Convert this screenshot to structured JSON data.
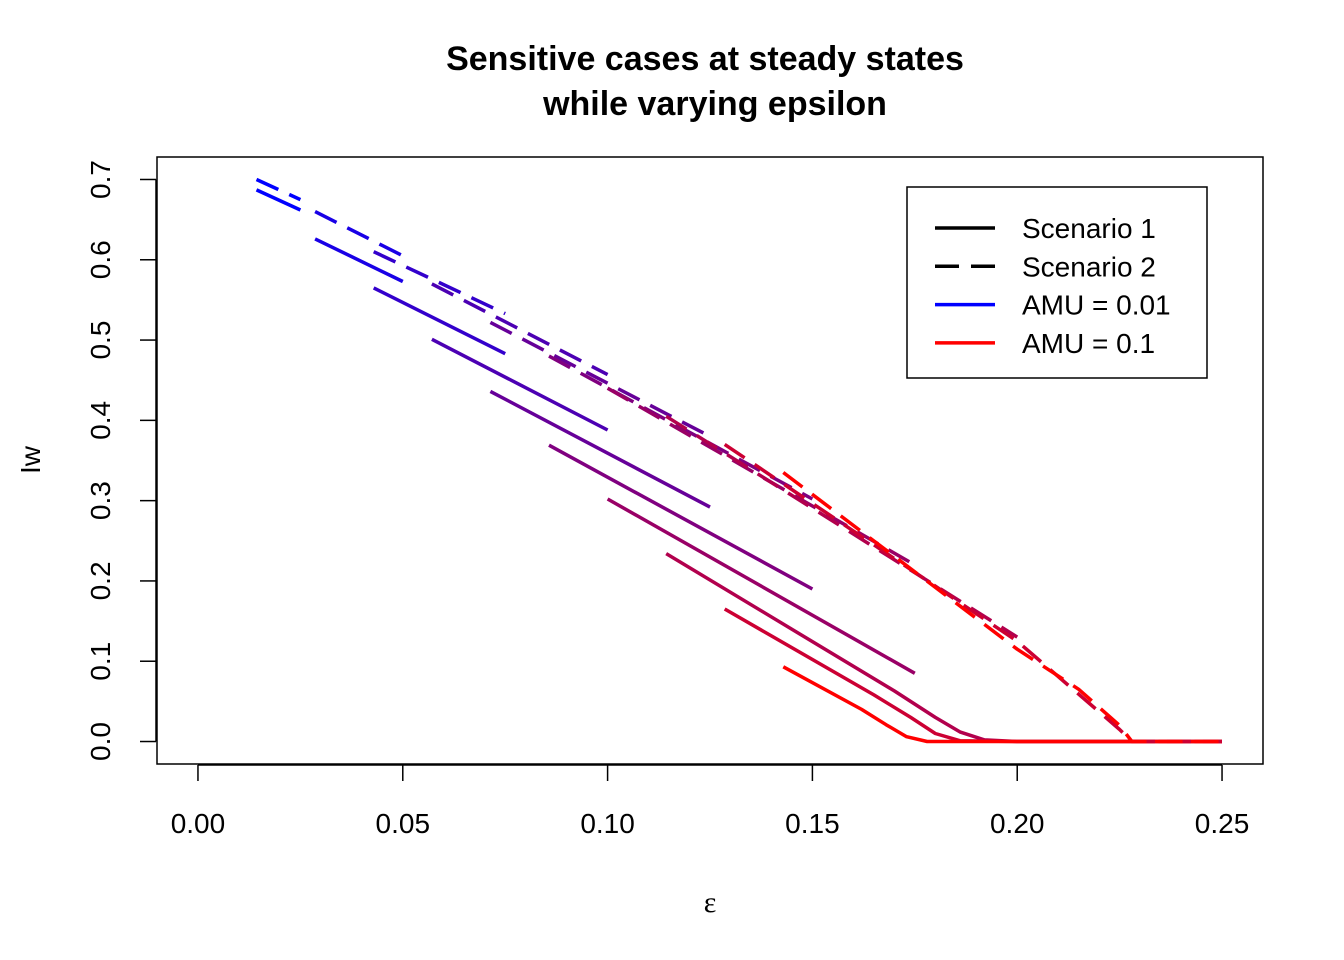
{
  "chart_data": {
    "type": "line",
    "title": [
      "Sensitive cases at steady states",
      "while varying epsilon"
    ],
    "xlabel": "ε",
    "ylabel": "Iw",
    "xlim": [
      -0.01,
      0.26
    ],
    "ylim": [
      -0.028,
      0.728
    ],
    "xticks": [
      0.0,
      0.05,
      0.1,
      0.15,
      0.2,
      0.25
    ],
    "xtick_labels": [
      "0.00",
      "0.05",
      "0.10",
      "0.15",
      "0.20",
      "0.25"
    ],
    "yticks": [
      0.0,
      0.1,
      0.2,
      0.3,
      0.4,
      0.5,
      0.6,
      0.7
    ],
    "ytick_labels": [
      "0.0",
      "0.1",
      "0.2",
      "0.3",
      "0.4",
      "0.5",
      "0.6",
      "0.7"
    ],
    "legend": {
      "position": "top-right",
      "entries": [
        {
          "label": "Scenario 1",
          "color": "#000000",
          "dash": "solid"
        },
        {
          "label": "Scenario 2",
          "color": "#000000",
          "dash": "dashed"
        },
        {
          "label": "AMU = 0.01",
          "color": "#0000ff",
          "dash": "solid"
        },
        {
          "label": "AMU = 0.1",
          "color": "#ff0000",
          "dash": "solid"
        }
      ]
    },
    "series": [
      {
        "scenario": 1,
        "color": "#0000ff",
        "dash": "solid",
        "points": [
          [
            0.0143,
            0.687
          ],
          [
            0.025,
            0.662
          ]
        ]
      },
      {
        "scenario": 1,
        "color": "#1900e6",
        "dash": "solid",
        "points": [
          [
            0.0286,
            0.626
          ],
          [
            0.05,
            0.573
          ]
        ]
      },
      {
        "scenario": 1,
        "color": "#3300cc",
        "dash": "solid",
        "points": [
          [
            0.0429,
            0.565
          ],
          [
            0.075,
            0.483
          ]
        ]
      },
      {
        "scenario": 1,
        "color": "#4c00b3",
        "dash": "solid",
        "points": [
          [
            0.0571,
            0.501
          ],
          [
            0.1,
            0.388
          ]
        ]
      },
      {
        "scenario": 1,
        "color": "#660099",
        "dash": "solid",
        "points": [
          [
            0.0714,
            0.436
          ],
          [
            0.125,
            0.292
          ]
        ]
      },
      {
        "scenario": 1,
        "color": "#800080",
        "dash": "solid",
        "points": [
          [
            0.0857,
            0.369
          ],
          [
            0.15,
            0.19
          ]
        ]
      },
      {
        "scenario": 1,
        "color": "#990066",
        "dash": "solid",
        "points": [
          [
            0.1,
            0.302
          ],
          [
            0.175,
            0.085
          ]
        ]
      },
      {
        "scenario": 1,
        "color": "#b2004d",
        "dash": "solid",
        "points": [
          [
            0.1143,
            0.234
          ],
          [
            0.17,
            0.063
          ],
          [
            0.18,
            0.03
          ],
          [
            0.186,
            0.012
          ],
          [
            0.192,
            0.002
          ],
          [
            0.2,
            0.0
          ],
          [
            0.25,
            0.0
          ]
        ]
      },
      {
        "scenario": 1,
        "color": "#cc0033",
        "dash": "solid",
        "points": [
          [
            0.1286,
            0.165
          ],
          [
            0.165,
            0.058
          ],
          [
            0.174,
            0.03
          ],
          [
            0.18,
            0.01
          ],
          [
            0.186,
            0.001
          ],
          [
            0.2,
            0.0
          ],
          [
            0.25,
            0.0
          ]
        ]
      },
      {
        "scenario": 1,
        "color": "#ff0000",
        "dash": "solid",
        "points": [
          [
            0.1429,
            0.093
          ],
          [
            0.162,
            0.04
          ],
          [
            0.168,
            0.021
          ],
          [
            0.173,
            0.006
          ],
          [
            0.178,
            0.0
          ],
          [
            0.25,
            0.0
          ]
        ]
      },
      {
        "scenario": 2,
        "color": "#0000ff",
        "dash": "dashed",
        "points": [
          [
            0.0143,
            0.7
          ],
          [
            0.025,
            0.675
          ]
        ]
      },
      {
        "scenario": 2,
        "color": "#1900e6",
        "dash": "dashed",
        "points": [
          [
            0.0286,
            0.66
          ],
          [
            0.05,
            0.605
          ]
        ]
      },
      {
        "scenario": 2,
        "color": "#3300cc",
        "dash": "dashed",
        "points": [
          [
            0.0429,
            0.61
          ],
          [
            0.075,
            0.533
          ]
        ]
      },
      {
        "scenario": 2,
        "color": "#4c00b3",
        "dash": "dashed",
        "points": [
          [
            0.0571,
            0.57
          ],
          [
            0.1,
            0.457
          ]
        ]
      },
      {
        "scenario": 2,
        "color": "#660099",
        "dash": "dashed",
        "points": [
          [
            0.0714,
            0.522
          ],
          [
            0.125,
            0.38
          ]
        ]
      },
      {
        "scenario": 2,
        "color": "#800080",
        "dash": "dashed",
        "points": [
          [
            0.0857,
            0.48
          ],
          [
            0.15,
            0.302
          ]
        ]
      },
      {
        "scenario": 2,
        "color": "#990066",
        "dash": "dashed",
        "points": [
          [
            0.1,
            0.44
          ],
          [
            0.175,
            0.22
          ]
        ]
      },
      {
        "scenario": 2,
        "color": "#b2004d",
        "dash": "dashed",
        "points": [
          [
            0.1143,
            0.405
          ],
          [
            0.2,
            0.13
          ]
        ]
      },
      {
        "scenario": 2,
        "color": "#cc0033",
        "dash": "dashed",
        "points": [
          [
            0.1286,
            0.37
          ],
          [
            0.2,
            0.125
          ],
          [
            0.225,
            0.015
          ],
          [
            0.228,
            0.0
          ],
          [
            0.25,
            0.0
          ]
        ]
      },
      {
        "scenario": 2,
        "color": "#ff0000",
        "dash": "dashed",
        "points": [
          [
            0.1429,
            0.335
          ],
          [
            0.2,
            0.115
          ],
          [
            0.215,
            0.065
          ],
          [
            0.225,
            0.02
          ],
          [
            0.228,
            0.0
          ],
          [
            0.25,
            0.0
          ]
        ]
      }
    ]
  }
}
